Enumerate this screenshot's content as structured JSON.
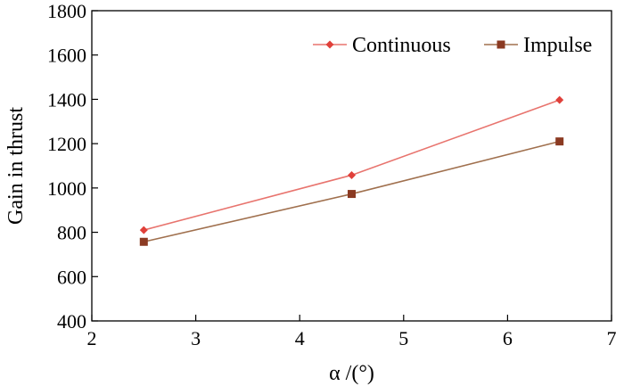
{
  "chart_data": {
    "type": "line",
    "title": "",
    "xlabel": "α /(°)",
    "ylabel": "Gain in thrust",
    "xlim": [
      2,
      7
    ],
    "ylim": [
      400,
      1800
    ],
    "xticks": [
      2,
      3,
      4,
      5,
      6,
      7
    ],
    "yticks": [
      400,
      600,
      800,
      1000,
      1200,
      1400,
      1600,
      1800
    ],
    "grid": false,
    "legend_position": "top-right",
    "series": [
      {
        "name": "Continuous",
        "marker": "diamond",
        "color": "#e8746e",
        "marker_color": "#e0403a",
        "x": [
          2.5,
          4.5,
          6.5
        ],
        "y": [
          810,
          1058,
          1397
        ]
      },
      {
        "name": "Impulse",
        "marker": "square",
        "color": "#a0704e",
        "marker_color": "#8b3a22",
        "x": [
          2.5,
          4.5,
          6.5
        ],
        "y": [
          757,
          973,
          1210
        ]
      }
    ]
  }
}
